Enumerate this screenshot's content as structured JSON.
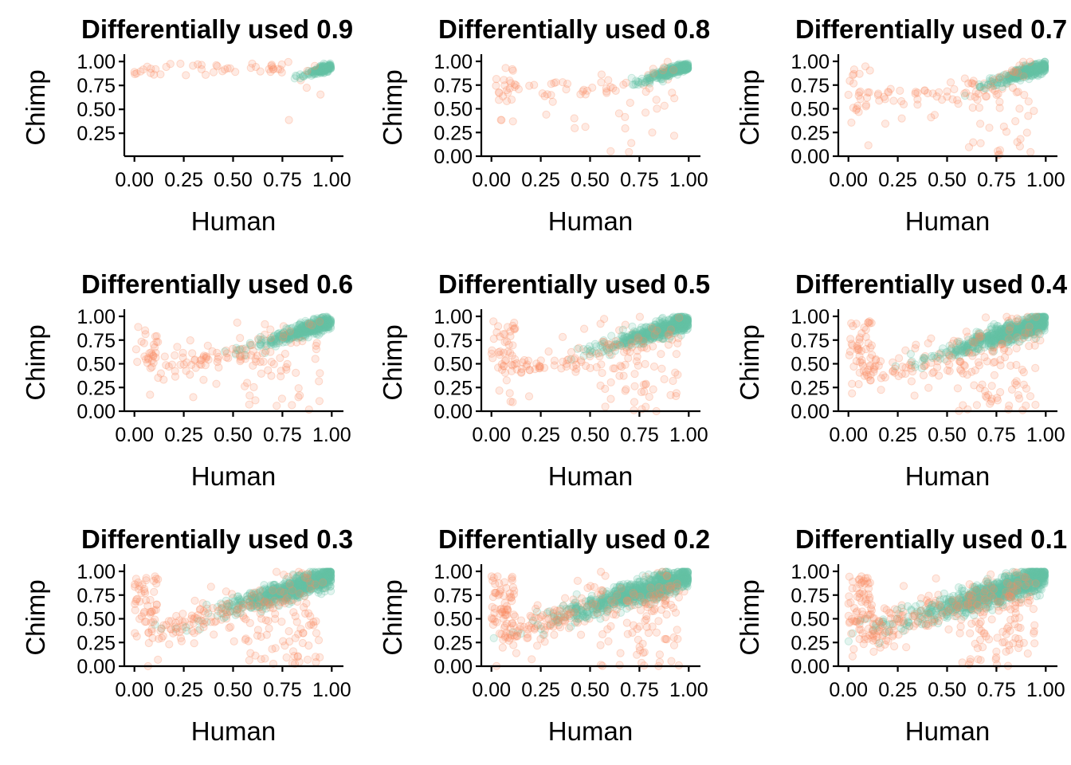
{
  "colors": {
    "not_differential": "#66c2a5",
    "differential": "#fc8d62"
  },
  "chart_data": [
    {
      "type": "scatter",
      "title": "Differentially used 0.9",
      "xlabel": "Human",
      "ylabel": "Chimp",
      "xlim": [
        -0.05,
        1.05
      ],
      "ylim": [
        0.02,
        1.04
      ],
      "xticks": [
        "0.00",
        "0.25",
        "0.50",
        "0.75",
        "1.00"
      ],
      "yticks": [
        "0.25",
        "0.50",
        "0.75",
        "1.00"
      ],
      "threshold": 0.9,
      "series": [
        {
          "values": []
        },
        {
          "values": []
        }
      ]
    },
    {
      "type": "scatter",
      "title": "Differentially used 0.8",
      "xlabel": "Human",
      "ylabel": "Chimp",
      "xlim": [
        -0.05,
        1.05
      ],
      "ylim": [
        -0.02,
        1.04
      ],
      "xticks": [
        "0.00",
        "0.25",
        "0.50",
        "0.75",
        "1.00"
      ],
      "yticks": [
        "0.00",
        "0.25",
        "0.50",
        "0.75",
        "1.00"
      ],
      "threshold": 0.8,
      "series": [
        {
          "values": []
        },
        {
          "values": []
        }
      ]
    },
    {
      "type": "scatter",
      "title": "Differentially used 0.7",
      "xlabel": "Human",
      "ylabel": "Chimp",
      "xlim": [
        -0.05,
        1.05
      ],
      "ylim": [
        -0.02,
        1.04
      ],
      "xticks": [
        "0.00",
        "0.25",
        "0.50",
        "0.75",
        "1.00"
      ],
      "yticks": [
        "0.00",
        "0.25",
        "0.50",
        "0.75",
        "1.00"
      ],
      "threshold": 0.7,
      "series": [
        {
          "values": []
        },
        {
          "values": []
        }
      ]
    },
    {
      "type": "scatter",
      "title": "Differentially used 0.6",
      "xlabel": "Human",
      "ylabel": "Chimp",
      "xlim": [
        -0.05,
        1.05
      ],
      "ylim": [
        -0.02,
        1.04
      ],
      "xticks": [
        "0.00",
        "0.25",
        "0.50",
        "0.75",
        "1.00"
      ],
      "yticks": [
        "0.00",
        "0.25",
        "0.50",
        "0.75",
        "1.00"
      ],
      "threshold": 0.6,
      "series": [
        {
          "values": []
        },
        {
          "values": []
        }
      ]
    },
    {
      "type": "scatter",
      "title": "Differentially used 0.5",
      "xlabel": "Human",
      "ylabel": "Chimp",
      "xlim": [
        -0.05,
        1.05
      ],
      "ylim": [
        -0.02,
        1.04
      ],
      "xticks": [
        "0.00",
        "0.25",
        "0.50",
        "0.75",
        "1.00"
      ],
      "yticks": [
        "0.00",
        "0.25",
        "0.50",
        "0.75",
        "1.00"
      ],
      "threshold": 0.5,
      "series": [
        {
          "values": []
        },
        {
          "values": []
        }
      ]
    },
    {
      "type": "scatter",
      "title": "Differentially used 0.4",
      "xlabel": "Human",
      "ylabel": "Chimp",
      "xlim": [
        -0.05,
        1.05
      ],
      "ylim": [
        -0.02,
        1.04
      ],
      "xticks": [
        "0.00",
        "0.25",
        "0.50",
        "0.75",
        "1.00"
      ],
      "yticks": [
        "0.00",
        "0.25",
        "0.50",
        "0.75",
        "1.00"
      ],
      "threshold": 0.4,
      "series": [
        {
          "values": []
        },
        {
          "values": []
        }
      ]
    },
    {
      "type": "scatter",
      "title": "Differentially used 0.3",
      "xlabel": "Human",
      "ylabel": "Chimp",
      "xlim": [
        -0.05,
        1.05
      ],
      "ylim": [
        -0.02,
        1.04
      ],
      "xticks": [
        "0.00",
        "0.25",
        "0.50",
        "0.75",
        "1.00"
      ],
      "yticks": [
        "0.00",
        "0.25",
        "0.50",
        "0.75",
        "1.00"
      ],
      "threshold": 0.3,
      "series": [
        {
          "values": []
        },
        {
          "values": []
        }
      ]
    },
    {
      "type": "scatter",
      "title": "Differentially used 0.2",
      "xlabel": "Human",
      "ylabel": "Chimp",
      "xlim": [
        -0.05,
        1.05
      ],
      "ylim": [
        -0.02,
        1.04
      ],
      "xticks": [
        "0.00",
        "0.25",
        "0.50",
        "0.75",
        "1.00"
      ],
      "yticks": [
        "0.00",
        "0.25",
        "0.50",
        "0.75",
        "1.00"
      ],
      "threshold": 0.2,
      "series": [
        {
          "values": []
        },
        {
          "values": []
        }
      ]
    },
    {
      "type": "scatter",
      "title": "Differentially used 0.1",
      "xlabel": "Human",
      "ylabel": "Chimp",
      "xlim": [
        -0.05,
        1.05
      ],
      "ylim": [
        -0.02,
        1.04
      ],
      "xticks": [
        "0.00",
        "0.25",
        "0.50",
        "0.75",
        "1.00"
      ],
      "yticks": [
        "0.00",
        "0.25",
        "0.50",
        "0.75",
        "1.00"
      ],
      "threshold": 0.1,
      "series": [
        {
          "values": []
        },
        {
          "values": []
        }
      ]
    }
  ]
}
